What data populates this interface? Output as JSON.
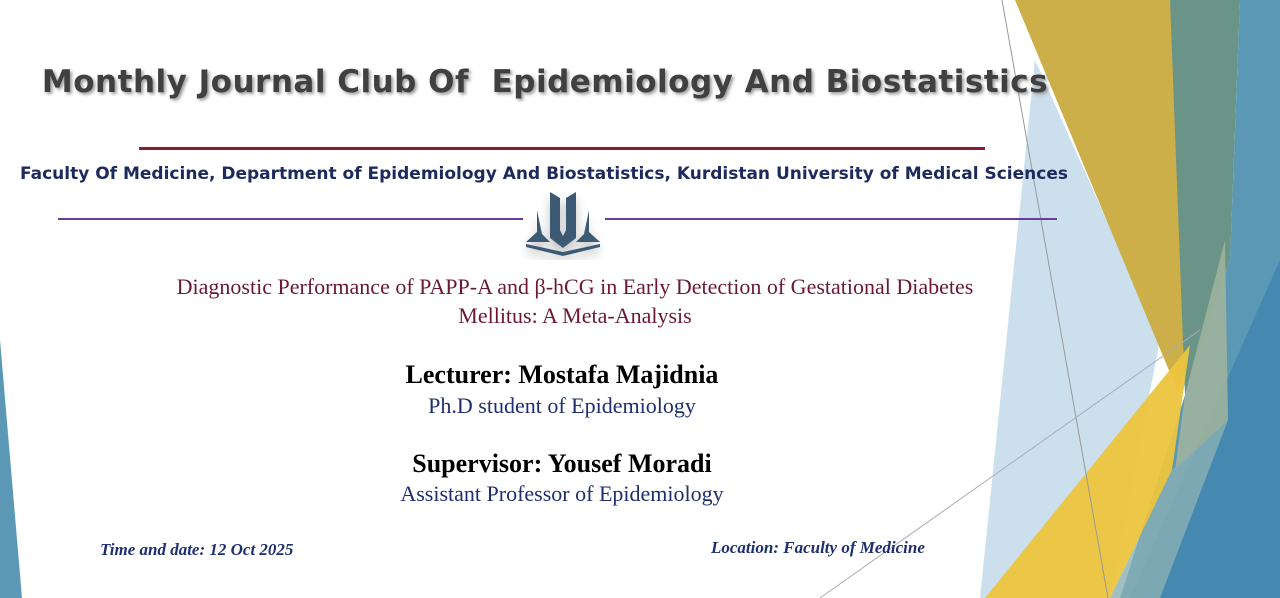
{
  "header": {
    "title": "Monthly Journal Club Of  Epidemiology And Biostatistics",
    "faculty": "Faculty Of Medicine, Department of Epidemiology And Biostatistics, Kurdistan University of Medical Sciences"
  },
  "logo": {
    "icon": "university-logo-icon",
    "color": "#3e5a74"
  },
  "paper": {
    "title_line1": "Diagnostic Performance of PAPP-A and β-hCG in Early Detection of Gestational Diabetes",
    "title_line2": "Mellitus: A Meta-Analysis"
  },
  "lecturer": {
    "name": "Lecturer: Mostafa Majidnia",
    "role": "Ph.D student of Epidemiology"
  },
  "supervisor": {
    "name": "Supervisor: Yousef Moradi",
    "role": "Assistant Professor of Epidemiology"
  },
  "footer": {
    "date": "Time and date: 12 Oct 2025",
    "location": "Location: Faculty of Medicine"
  },
  "colors": {
    "gold": "#c9ab3e",
    "teal": "#6a9488",
    "blue": "#4a8db4",
    "light_blue": "#a9cce0",
    "yellow": "#ecc43e"
  }
}
